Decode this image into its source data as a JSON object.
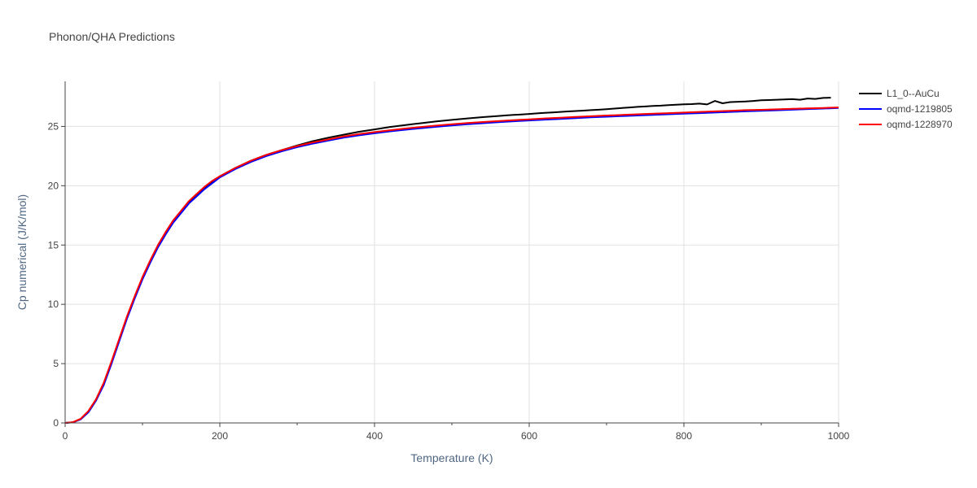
{
  "chart_data": {
    "type": "line",
    "title": "Phonon/QHA Predictions",
    "xlabel": "Temperature (K)",
    "ylabel": "Cp numerical (J/K/mol)",
    "xlim": [
      0,
      1000
    ],
    "ylim": [
      0,
      28.8
    ],
    "xticks": [
      0,
      200,
      400,
      600,
      800,
      1000
    ],
    "yticks": [
      0,
      5,
      10,
      15,
      20,
      25
    ],
    "grid": true,
    "legend": "top-right outside",
    "series": [
      {
        "name": "L1_0--AuCu",
        "color": "#000000",
        "x": [
          0,
          10,
          20,
          30,
          40,
          50,
          60,
          70,
          80,
          90,
          100,
          110,
          120,
          130,
          140,
          150,
          160,
          170,
          180,
          190,
          200,
          220,
          240,
          260,
          280,
          300,
          320,
          340,
          360,
          380,
          400,
          420,
          440,
          460,
          480,
          500,
          520,
          540,
          560,
          570,
          580,
          590,
          600,
          610,
          620,
          630,
          640,
          650,
          660,
          670,
          680,
          690,
          700,
          710,
          720,
          730,
          740,
          750,
          760,
          770,
          780,
          790,
          800,
          810,
          820,
          830,
          840,
          850,
          860,
          870,
          880,
          890,
          900,
          910,
          920,
          930,
          940,
          950,
          960,
          970,
          980,
          990
        ],
        "y": [
          0,
          0.05,
          0.3,
          0.9,
          1.9,
          3.3,
          5.1,
          7.0,
          8.9,
          10.6,
          12.2,
          13.6,
          14.9,
          16.0,
          17.0,
          17.8,
          18.6,
          19.2,
          19.8,
          20.3,
          20.8,
          21.5,
          22.1,
          22.6,
          23.0,
          23.4,
          23.75,
          24.05,
          24.3,
          24.55,
          24.75,
          24.95,
          25.12,
          25.27,
          25.42,
          25.55,
          25.67,
          25.78,
          25.88,
          25.93,
          25.97,
          26.0,
          26.05,
          26.1,
          26.14,
          26.18,
          26.22,
          26.26,
          26.3,
          26.33,
          26.37,
          26.41,
          26.45,
          26.5,
          26.55,
          26.6,
          26.65,
          26.68,
          26.72,
          26.75,
          26.8,
          26.83,
          26.86,
          26.88,
          26.92,
          26.85,
          27.15,
          26.95,
          27.05,
          27.08,
          27.1,
          27.15,
          27.2,
          27.22,
          27.25,
          27.28,
          27.3,
          27.25,
          27.35,
          27.32,
          27.4,
          27.42
        ]
      },
      {
        "name": "oqmd-1219805",
        "color": "#0000ff",
        "x": [
          0,
          10,
          20,
          30,
          40,
          50,
          60,
          70,
          80,
          90,
          100,
          110,
          120,
          130,
          140,
          150,
          160,
          170,
          180,
          190,
          200,
          220,
          240,
          260,
          280,
          300,
          320,
          340,
          360,
          380,
          400,
          420,
          440,
          460,
          480,
          500,
          520,
          540,
          560,
          580,
          600,
          620,
          640,
          660,
          680,
          700,
          720,
          740,
          760,
          780,
          800,
          820,
          840,
          860,
          880,
          900,
          920,
          940,
          960,
          980,
          1000
        ],
        "y": [
          0,
          0.05,
          0.3,
          0.9,
          1.9,
          3.2,
          5.0,
          6.9,
          8.8,
          10.5,
          12.1,
          13.5,
          14.8,
          15.9,
          16.9,
          17.7,
          18.5,
          19.1,
          19.7,
          20.2,
          20.7,
          21.4,
          22.0,
          22.5,
          22.9,
          23.25,
          23.55,
          23.8,
          24.05,
          24.25,
          24.42,
          24.58,
          24.72,
          24.85,
          24.97,
          25.08,
          25.18,
          25.27,
          25.35,
          25.43,
          25.5,
          25.57,
          25.63,
          25.7,
          25.76,
          25.82,
          25.87,
          25.92,
          25.97,
          26.02,
          26.07,
          26.12,
          26.17,
          26.22,
          26.27,
          26.31,
          26.36,
          26.41,
          26.46,
          26.5,
          26.55
        ]
      },
      {
        "name": "oqmd-1228970",
        "color": "#ff0000",
        "x": [
          0,
          10,
          20,
          30,
          40,
          50,
          60,
          70,
          80,
          90,
          100,
          110,
          120,
          130,
          140,
          150,
          160,
          170,
          180,
          190,
          200,
          220,
          240,
          260,
          280,
          300,
          320,
          340,
          360,
          380,
          400,
          420,
          440,
          460,
          480,
          500,
          520,
          540,
          560,
          580,
          600,
          620,
          640,
          660,
          680,
          700,
          720,
          740,
          760,
          780,
          800,
          820,
          840,
          860,
          880,
          900,
          920,
          940,
          960,
          980,
          1000
        ],
        "y": [
          0,
          0.06,
          0.35,
          1.0,
          2.0,
          3.4,
          5.2,
          7.1,
          9.0,
          10.7,
          12.3,
          13.7,
          15.0,
          16.1,
          17.1,
          17.9,
          18.7,
          19.3,
          19.9,
          20.4,
          20.8,
          21.5,
          22.1,
          22.6,
          23.0,
          23.35,
          23.65,
          23.9,
          24.15,
          24.35,
          24.52,
          24.68,
          24.82,
          24.95,
          25.07,
          25.18,
          25.28,
          25.37,
          25.45,
          25.53,
          25.6,
          25.67,
          25.73,
          25.8,
          25.86,
          25.92,
          25.97,
          26.02,
          26.07,
          26.12,
          26.17,
          26.22,
          26.27,
          26.32,
          26.37,
          26.4,
          26.44,
          26.48,
          26.52,
          26.56,
          26.6
        ]
      }
    ]
  }
}
